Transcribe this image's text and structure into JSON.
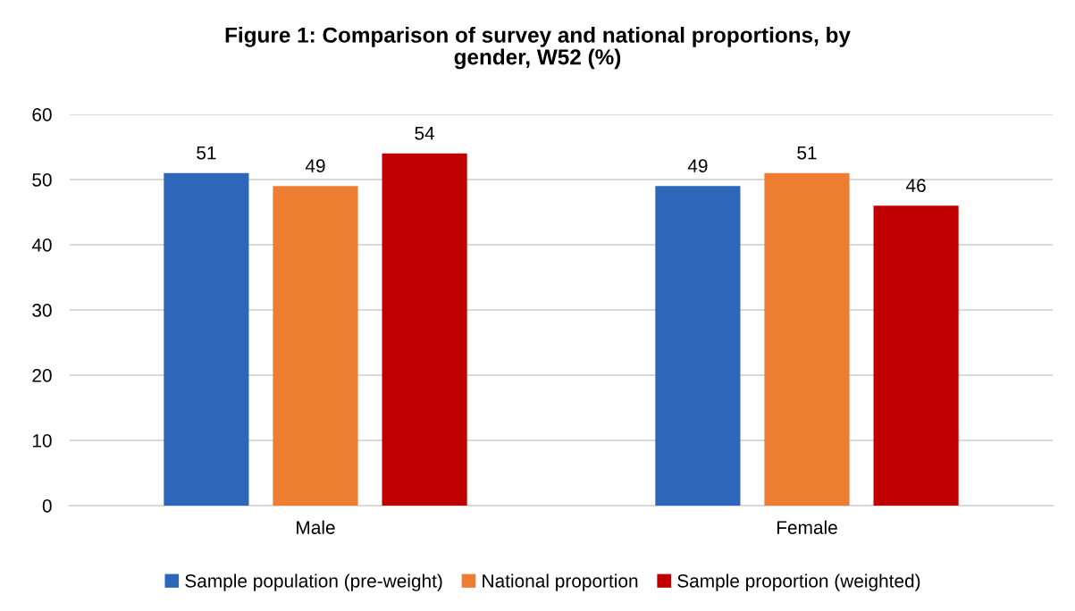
{
  "chart_data": {
    "type": "bar",
    "title": "Figure 1: Comparison of survey and national proportions, by gender, W52 (%)",
    "categories": [
      "Male",
      "Female"
    ],
    "series": [
      {
        "name": "Sample population (pre-weight)",
        "color": "#2e66b9",
        "values": [
          51,
          49
        ]
      },
      {
        "name": "National proportion",
        "color": "#ed7d31",
        "values": [
          49,
          51
        ]
      },
      {
        "name": "Sample proportion (weighted)",
        "color": "#c00000",
        "values": [
          54,
          46
        ]
      }
    ],
    "ylim": [
      0,
      60
    ],
    "yticks": [
      0,
      10,
      20,
      30,
      40,
      50,
      60
    ],
    "grid": "y",
    "legend": "bottom",
    "data_labels": true
  }
}
